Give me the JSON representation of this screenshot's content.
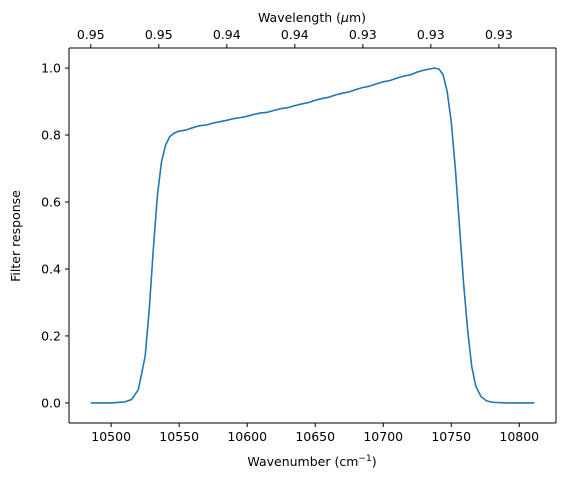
{
  "chart_data": {
    "type": "line",
    "title": "",
    "xlabel": "Wavenumber (cm",
    "xlabel_superscript": "−1",
    "xlabel_suffix": ")",
    "ylabel": "Filter response",
    "top_xlabel": "Wavelength (",
    "top_xlabel_greek": "μ",
    "top_xlabel_suffix": "m)",
    "xlim": [
      10469,
      10827
    ],
    "ylim": [
      -0.06,
      1.06
    ],
    "xticks": [
      10500,
      10550,
      10600,
      10650,
      10700,
      10750,
      10800
    ],
    "xtick_labels": [
      "10500",
      "10550",
      "10600",
      "10650",
      "10700",
      "10750",
      "10800"
    ],
    "yticks": [
      0.0,
      0.2,
      0.4,
      0.6,
      0.8,
      1.0
    ],
    "ytick_labels": [
      "0.0",
      "0.2",
      "0.4",
      "0.6",
      "0.8",
      "1.0"
    ],
    "top_ticks": [
      10485,
      10535,
      10585,
      10635,
      10685,
      10735,
      10785
    ],
    "top_tick_labels": [
      "0.95",
      "0.95",
      "0.94",
      "0.94",
      "0.93",
      "0.93",
      "0.93"
    ],
    "grid": false,
    "series": [
      {
        "color": "#1f77b4",
        "x": [
          10485,
          10500,
          10510,
          10515,
          10520,
          10525,
          10528,
          10531,
          10534,
          10537,
          10540,
          10543,
          10546,
          10550,
          10555,
          10560,
          10565,
          10570,
          10575,
          10580,
          10585,
          10590,
          10595,
          10600,
          10605,
          10610,
          10615,
          10620,
          10625,
          10630,
          10635,
          10640,
          10645,
          10650,
          10655,
          10660,
          10665,
          10670,
          10675,
          10680,
          10685,
          10690,
          10695,
          10700,
          10705,
          10710,
          10715,
          10720,
          10725,
          10730,
          10735,
          10738,
          10741,
          10744,
          10747,
          10750,
          10753,
          10756,
          10759,
          10762,
          10765,
          10768,
          10772,
          10776,
          10780,
          10790,
          10800,
          10811
        ],
        "y": [
          0.0,
          0.0,
          0.003,
          0.01,
          0.04,
          0.14,
          0.28,
          0.46,
          0.62,
          0.72,
          0.77,
          0.795,
          0.805,
          0.812,
          0.815,
          0.822,
          0.828,
          0.83,
          0.836,
          0.84,
          0.844,
          0.849,
          0.852,
          0.856,
          0.862,
          0.866,
          0.868,
          0.874,
          0.879,
          0.882,
          0.888,
          0.893,
          0.897,
          0.904,
          0.909,
          0.913,
          0.92,
          0.925,
          0.929,
          0.936,
          0.942,
          0.946,
          0.953,
          0.959,
          0.963,
          0.97,
          0.976,
          0.98,
          0.988,
          0.994,
          0.998,
          1.0,
          0.997,
          0.98,
          0.93,
          0.84,
          0.7,
          0.53,
          0.36,
          0.22,
          0.11,
          0.05,
          0.018,
          0.006,
          0.002,
          0.0,
          0.0,
          0.0
        ]
      }
    ]
  }
}
